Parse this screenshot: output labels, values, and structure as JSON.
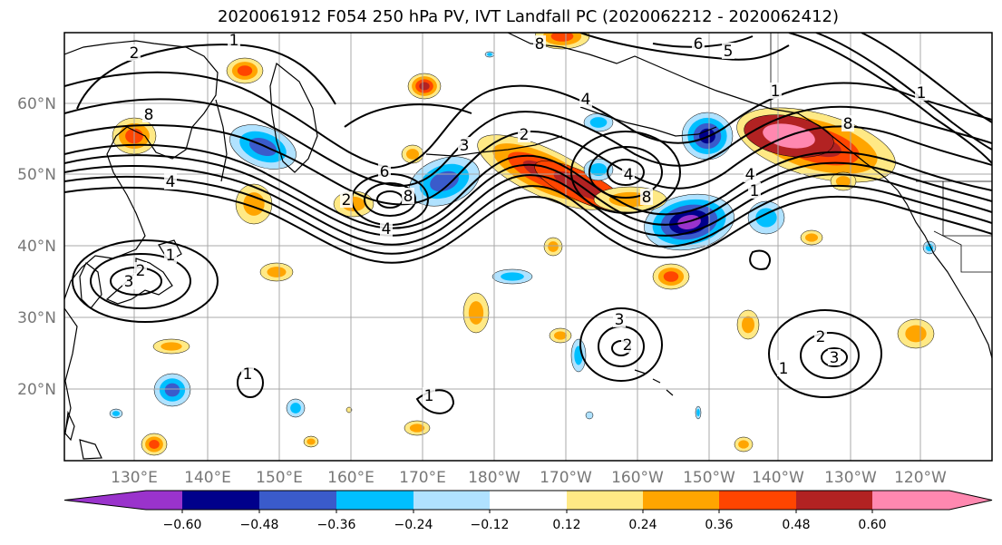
{
  "title": "2020061912 F054 250 hPa PV, IVT Landfall PC (2020062212 - 2020062412)",
  "map": {
    "lon_ticks": [
      "130°E",
      "140°E",
      "150°E",
      "160°E",
      "170°E",
      "180°W",
      "170°W",
      "160°W",
      "150°W",
      "140°W",
      "130°W",
      "120°W"
    ],
    "lat_ticks": [
      "20°N",
      "30°N",
      "40°N",
      "50°N",
      "60°N"
    ],
    "colors": {
      "ocean": "#ffffff",
      "gridline": "#a8a8a8",
      "coast": "#000000",
      "contour": "#000000"
    }
  },
  "colorbar": {
    "tick_labels": [
      "−0.60",
      "−0.48",
      "−0.36",
      "−0.24",
      "−0.12",
      "0.12",
      "0.24",
      "0.36",
      "0.48",
      "0.60"
    ],
    "colors": [
      "#9a33cc",
      "#00008b",
      "#3a5bcb",
      "#00bfff",
      "#b0e2ff",
      "#ffffff",
      "#ffe985",
      "#ffa500",
      "#ff4500",
      "#b22222",
      "#ff88b0"
    ]
  },
  "contour_labels": [
    {
      "text": "1"
    },
    {
      "text": "2"
    },
    {
      "text": "8"
    },
    {
      "text": "4"
    },
    {
      "text": "6"
    },
    {
      "text": "2"
    },
    {
      "text": "8"
    },
    {
      "text": "4"
    },
    {
      "text": "2"
    },
    {
      "text": "3"
    },
    {
      "text": "5"
    },
    {
      "text": "6"
    },
    {
      "text": "4"
    },
    {
      "text": "8"
    },
    {
      "text": "1"
    },
    {
      "text": "8"
    },
    {
      "text": "1"
    },
    {
      "text": "1"
    },
    {
      "text": "4"
    },
    {
      "text": "8"
    },
    {
      "text": "1"
    },
    {
      "text": "2"
    },
    {
      "text": "3"
    },
    {
      "text": "1"
    },
    {
      "text": "1"
    },
    {
      "text": "3"
    },
    {
      "text": "2"
    },
    {
      "text": "1"
    },
    {
      "text": "2"
    },
    {
      "text": "3"
    },
    {
      "text": "4"
    }
  ]
}
